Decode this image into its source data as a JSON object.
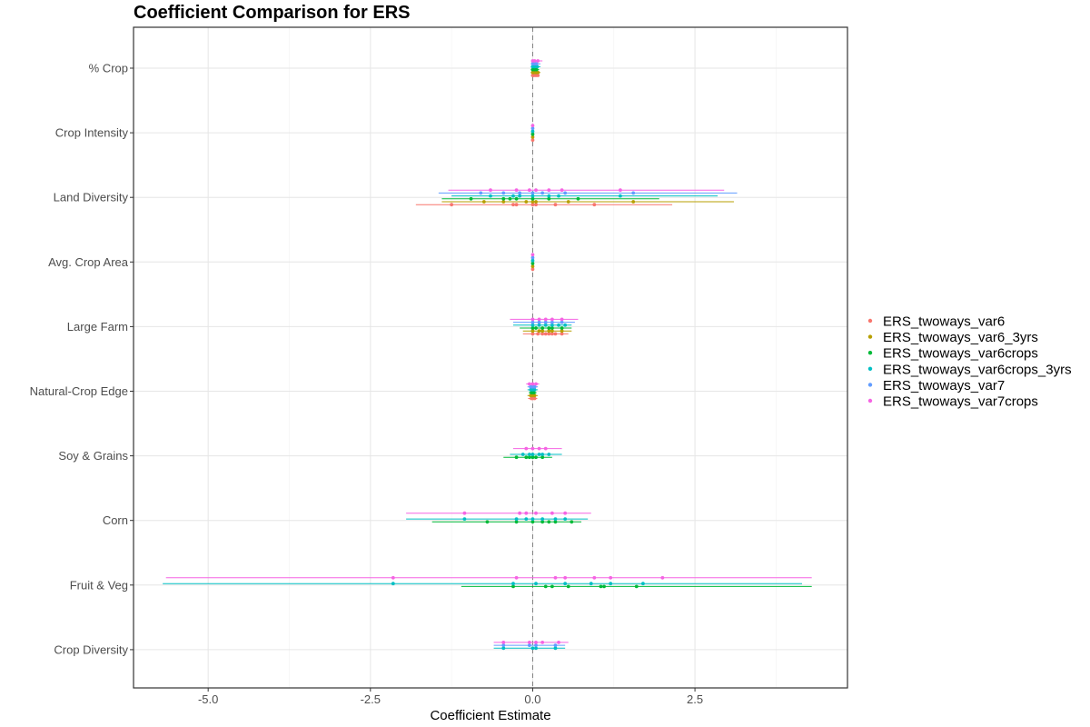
{
  "chart_data": {
    "type": "scatter",
    "title": "Coefficient Comparison for ERS",
    "xlabel": "Coefficient Estimate",
    "ylabel": "",
    "xlim": [
      -6.15,
      4.85
    ],
    "x_ticks": [
      -5.0,
      -2.5,
      0.0,
      2.5
    ],
    "x_tick_labels": [
      "-5.0",
      "-2.5",
      "0.0",
      "2.5"
    ],
    "reference_line_x": 0,
    "grid": true,
    "legend_position": "right",
    "categories": [
      "% Crop",
      "Crop Intensity",
      "Land Diversity",
      "Avg. Crop Area",
      "Large Farm",
      "Natural-Crop Edge",
      "Soy & Grains",
      "Corn",
      "Fruit & Veg",
      "Crop Diversity"
    ],
    "series": [
      {
        "name": "ERS_twoways_var6",
        "color": "#F8766D",
        "points": [
          {
            "category": "% Crop",
            "x": [
              0.0,
              0.02,
              0.05,
              0.08
            ],
            "ci": [
              -0.02,
              0.1
            ]
          },
          {
            "category": "Crop Intensity",
            "x": [
              0.0
            ],
            "ci": [
              -0.01,
              0.01
            ]
          },
          {
            "category": "Land Diversity",
            "x": [
              -1.25,
              -0.3,
              -0.25,
              0.0,
              0.05,
              0.35,
              0.95
            ],
            "ci": [
              -1.8,
              2.15
            ]
          },
          {
            "category": "Avg. Crop Area",
            "x": [
              0.0
            ],
            "ci": [
              -0.01,
              0.01
            ]
          },
          {
            "category": "Large Farm",
            "x": [
              0.0,
              0.08,
              0.15,
              0.2,
              0.25,
              0.3,
              0.35,
              0.45
            ],
            "ci": [
              -0.15,
              0.55
            ]
          },
          {
            "category": "Natural-Crop Edge",
            "x": [
              -0.02,
              0.0,
              0.03
            ],
            "ci": [
              -0.07,
              0.07
            ]
          }
        ]
      },
      {
        "name": "ERS_twoways_var6_3yrs",
        "color": "#B79F00",
        "points": [
          {
            "category": "% Crop",
            "x": [
              0.0,
              0.02,
              0.05,
              0.08
            ],
            "ci": [
              -0.03,
              0.12
            ]
          },
          {
            "category": "Crop Intensity",
            "x": [
              0.0
            ],
            "ci": [
              -0.01,
              0.01
            ]
          },
          {
            "category": "Land Diversity",
            "x": [
              -0.75,
              -0.45,
              -0.1,
              0.0,
              0.05,
              0.55,
              1.55
            ],
            "ci": [
              -1.4,
              3.1
            ]
          },
          {
            "category": "Avg. Crop Area",
            "x": [
              0.0
            ],
            "ci": [
              -0.01,
              0.01
            ]
          },
          {
            "category": "Large Farm",
            "x": [
              0.0,
              0.1,
              0.15,
              0.25,
              0.3,
              0.45
            ],
            "ci": [
              -0.15,
              0.6
            ]
          },
          {
            "category": "Natural-Crop Edge",
            "x": [
              -0.03,
              0.0,
              0.03
            ],
            "ci": [
              -0.08,
              0.08
            ]
          }
        ]
      },
      {
        "name": "ERS_twoways_var6crops",
        "color": "#00BA38",
        "points": [
          {
            "category": "% Crop",
            "x": [
              0.0,
              0.03,
              0.06
            ],
            "ci": [
              -0.03,
              0.1
            ]
          },
          {
            "category": "Crop Intensity",
            "x": [
              0.0
            ],
            "ci": [
              -0.01,
              0.01
            ]
          },
          {
            "category": "Land Diversity",
            "x": [
              -0.95,
              -0.45,
              -0.35,
              -0.25,
              0.0,
              0.25,
              0.7
            ],
            "ci": [
              -1.4,
              1.95
            ]
          },
          {
            "category": "Avg. Crop Area",
            "x": [
              0.0
            ],
            "ci": [
              -0.01,
              0.01
            ]
          },
          {
            "category": "Large Farm",
            "x": [
              0.0,
              0.05,
              0.15,
              0.25,
              0.3,
              0.45
            ],
            "ci": [
              -0.2,
              0.6
            ]
          },
          {
            "category": "Natural-Crop Edge",
            "x": [
              -0.02,
              0.0,
              0.02
            ],
            "ci": [
              -0.06,
              0.06
            ]
          },
          {
            "category": "Soy & Grains",
            "x": [
              -0.25,
              -0.1,
              -0.05,
              0.0,
              0.05,
              0.15
            ],
            "ci": [
              -0.45,
              0.3
            ]
          },
          {
            "category": "Corn",
            "x": [
              -0.7,
              -0.25,
              0.0,
              0.15,
              0.25,
              0.35,
              0.6
            ],
            "ci": [
              -1.55,
              0.75
            ]
          },
          {
            "category": "Fruit & Veg",
            "x": [
              -0.3,
              0.2,
              0.3,
              0.55,
              1.05,
              1.1,
              1.6
            ],
            "ci": [
              -1.1,
              4.3
            ]
          }
        ]
      },
      {
        "name": "ERS_twoways_var6crops_3yrs",
        "color": "#00BFC4",
        "points": [
          {
            "category": "% Crop",
            "x": [
              0.0,
              0.03,
              0.07
            ],
            "ci": [
              -0.03,
              0.12
            ]
          },
          {
            "category": "Crop Intensity",
            "x": [
              0.0
            ],
            "ci": [
              -0.01,
              0.01
            ]
          },
          {
            "category": "Land Diversity",
            "x": [
              -0.65,
              -0.3,
              -0.2,
              0.0,
              0.25,
              0.4,
              1.35
            ],
            "ci": [
              -1.25,
              2.85
            ]
          },
          {
            "category": "Avg. Crop Area",
            "x": [
              0.0
            ],
            "ci": [
              -0.01,
              0.01
            ]
          },
          {
            "category": "Large Farm",
            "x": [
              0.0,
              0.1,
              0.2,
              0.3,
              0.4,
              0.5
            ],
            "ci": [
              -0.3,
              0.6
            ]
          },
          {
            "category": "Natural-Crop Edge",
            "x": [
              -0.03,
              0.0,
              0.03
            ],
            "ci": [
              -0.08,
              0.08
            ]
          },
          {
            "category": "Soy & Grains",
            "x": [
              -0.15,
              -0.05,
              0.0,
              0.1,
              0.15,
              0.25
            ],
            "ci": [
              -0.35,
              0.45
            ]
          },
          {
            "category": "Corn",
            "x": [
              -1.05,
              -0.25,
              -0.1,
              0.0,
              0.15,
              0.35,
              0.5
            ],
            "ci": [
              -1.95,
              0.85
            ]
          },
          {
            "category": "Fruit & Veg",
            "x": [
              -2.15,
              -0.3,
              0.05,
              0.5,
              0.9,
              1.2,
              1.7
            ],
            "ci": [
              -5.7,
              4.15
            ]
          },
          {
            "category": "Crop Diversity",
            "x": [
              -0.45,
              0.0,
              0.05,
              0.35
            ],
            "ci": [
              -0.6,
              0.5
            ]
          }
        ]
      },
      {
        "name": "ERS_twoways_var7",
        "color": "#619CFF",
        "points": [
          {
            "category": "% Crop",
            "x": [
              0.0,
              0.03,
              0.06
            ],
            "ci": [
              -0.02,
              0.12
            ]
          },
          {
            "category": "Crop Intensity",
            "x": [
              0.0
            ],
            "ci": [
              -0.01,
              0.01
            ]
          },
          {
            "category": "Land Diversity",
            "x": [
              -0.8,
              -0.45,
              -0.2,
              0.0,
              0.15,
              0.5,
              1.55
            ],
            "ci": [
              -1.45,
              3.15
            ]
          },
          {
            "category": "Avg. Crop Area",
            "x": [
              0.0
            ],
            "ci": [
              -0.01,
              0.01
            ]
          },
          {
            "category": "Large Farm",
            "x": [
              0.0,
              0.1,
              0.2,
              0.3,
              0.45
            ],
            "ci": [
              -0.3,
              0.65
            ]
          },
          {
            "category": "Natural-Crop Edge",
            "x": [
              -0.03,
              0.0,
              0.03
            ],
            "ci": [
              -0.08,
              0.08
            ]
          },
          {
            "category": "Crop Diversity",
            "x": [
              -0.45,
              -0.05,
              0.05,
              0.35
            ],
            "ci": [
              -0.6,
              0.5
            ]
          }
        ]
      },
      {
        "name": "ERS_twoways_var7crops",
        "color": "#F564E3",
        "points": [
          {
            "category": "% Crop",
            "x": [
              0.0,
              0.03,
              0.08
            ],
            "ci": [
              -0.02,
              0.15
            ]
          },
          {
            "category": "Crop Intensity",
            "x": [
              0.0
            ],
            "ci": [
              -0.01,
              0.01
            ]
          },
          {
            "category": "Land Diversity",
            "x": [
              -0.65,
              -0.25,
              -0.05,
              0.05,
              0.25,
              0.45,
              1.35
            ],
            "ci": [
              -1.3,
              2.95
            ]
          },
          {
            "category": "Avg. Crop Area",
            "x": [
              0.0
            ],
            "ci": [
              -0.01,
              0.01
            ]
          },
          {
            "category": "Large Farm",
            "x": [
              0.0,
              0.1,
              0.2,
              0.3,
              0.45
            ],
            "ci": [
              -0.35,
              0.7
            ]
          },
          {
            "category": "Natural-Crop Edge",
            "x": [
              -0.05,
              0.0,
              0.05
            ],
            "ci": [
              -0.1,
              0.1
            ]
          },
          {
            "category": "Soy & Grains",
            "x": [
              -0.1,
              0.0,
              0.1,
              0.2
            ],
            "ci": [
              -0.3,
              0.45
            ]
          },
          {
            "category": "Corn",
            "x": [
              -1.05,
              -0.2,
              -0.1,
              0.05,
              0.3,
              0.5
            ],
            "ci": [
              -1.95,
              0.9
            ]
          },
          {
            "category": "Fruit & Veg",
            "x": [
              -2.15,
              -0.25,
              0.35,
              0.5,
              0.95,
              1.2,
              2.0
            ],
            "ci": [
              -5.65,
              4.3
            ]
          },
          {
            "category": "Crop Diversity",
            "x": [
              -0.45,
              -0.05,
              0.05,
              0.15,
              0.4
            ],
            "ci": [
              -0.6,
              0.55
            ]
          }
        ]
      }
    ]
  }
}
